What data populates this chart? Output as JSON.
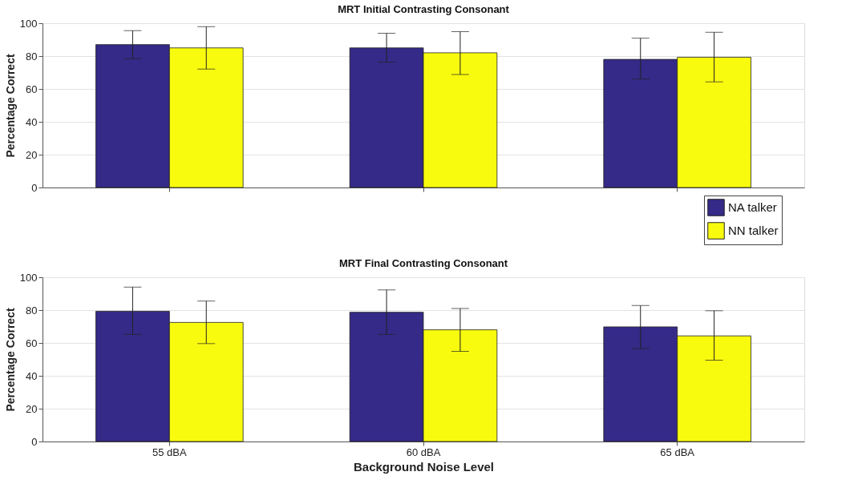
{
  "chart_data": [
    {
      "type": "bar",
      "title": "MRT Initial Contrasting Consonant",
      "ylabel": "Percentage Correct",
      "categories": [
        null,
        null,
        null
      ],
      "ylim": [
        0,
        100
      ],
      "yticks": [
        0,
        20,
        40,
        60,
        80,
        100
      ],
      "grid": "y",
      "legend": "bottom right",
      "tick_labels": "y",
      "series": [
        {
          "name": "NA talker",
          "color": "#352a87",
          "values": [
            87,
            85,
            78
          ],
          "errors": [
            [
              78.4,
              95.5
            ],
            [
              76.3,
              93.9
            ],
            [
              66.1,
              90.9
            ]
          ]
        },
        {
          "name": "NN talker",
          "color": "#f9fb0e",
          "values": [
            85,
            82,
            79.3
          ],
          "errors": [
            [
              72.1,
              97.9
            ],
            [
              68.8,
              94.9
            ],
            [
              64.3,
              94.5
            ]
          ]
        }
      ]
    },
    {
      "type": "bar",
      "title": "MRT Final Contrasting Consonant",
      "ylabel": "Percentage Correct",
      "xlabel": "Background Noise Level",
      "categories": [
        "55 dBA",
        "60 dBA",
        "65 dBA"
      ],
      "ylim": [
        0,
        100
      ],
      "yticks": [
        0,
        20,
        40,
        60,
        80,
        100
      ],
      "grid": "y",
      "series": [
        {
          "name": "NA talker",
          "color": "#352a87",
          "values": [
            79.3,
            78.7,
            69.8
          ],
          "errors": [
            [
              65.2,
              94.0
            ],
            [
              65.2,
              92.3
            ],
            [
              56.6,
              82.8
            ]
          ]
        },
        {
          "name": "NN talker",
          "color": "#f9fb0e",
          "values": [
            72.5,
            68.0,
            64.3
          ],
          "errors": [
            [
              59.6,
              85.5
            ],
            [
              54.9,
              81.0
            ],
            [
              49.5,
              79.6
            ]
          ]
        }
      ]
    }
  ]
}
